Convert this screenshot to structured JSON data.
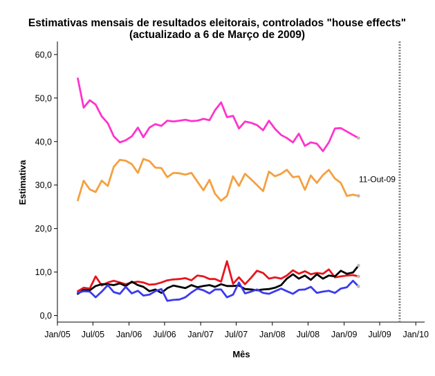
{
  "chart_data": {
    "type": "line",
    "title_line1": "Estimativas mensais de resultados eleitorais, controlados \"house effects\"",
    "title_line2": "(actualizado a 6 de Março de 2009)",
    "xlabel": "Mês",
    "ylabel": "Estimativa",
    "ylim": [
      -1.5,
      63
    ],
    "xlim": [
      "2005-01-01",
      "2010-02-15"
    ],
    "yticks": [
      0,
      10,
      20,
      30,
      40,
      50,
      60
    ],
    "ytick_labels": [
      "0,0",
      "10,0",
      "20,0",
      "30,0",
      "40,0",
      "50,0",
      "60,0"
    ],
    "xticks": [
      "2005-01-01",
      "2005-07-01",
      "2006-01-01",
      "2006-07-01",
      "2007-01-01",
      "2007-07-01",
      "2008-01-01",
      "2008-07-01",
      "2009-01-01",
      "2009-07-01",
      "2010-01-01"
    ],
    "xtick_labels": [
      "Jan/05",
      "Jul/05",
      "Jan/06",
      "Jul/06",
      "Jan/07",
      "Jul/07",
      "Jan/08",
      "Jul/08",
      "Jan/09",
      "Jul/09",
      "Jan/10"
    ],
    "grid": false,
    "legend": "none",
    "reference_line": {
      "x": "2009-10-11",
      "label": "11-Out-09",
      "style": "dotted",
      "color": "#808080"
    },
    "x": [
      "2005-04-15",
      "2005-05-15",
      "2005-06-15",
      "2005-07-15",
      "2005-08-15",
      "2005-09-15",
      "2005-10-15",
      "2005-11-15",
      "2005-12-15",
      "2006-01-15",
      "2006-02-15",
      "2006-03-15",
      "2006-04-15",
      "2006-05-15",
      "2006-06-15",
      "2006-07-15",
      "2006-08-15",
      "2006-09-15",
      "2006-10-15",
      "2006-11-15",
      "2006-12-15",
      "2007-01-15",
      "2007-02-15",
      "2007-03-15",
      "2007-04-15",
      "2007-05-15",
      "2007-06-15",
      "2007-07-15",
      "2007-08-15",
      "2007-09-15",
      "2007-10-15",
      "2007-11-15",
      "2007-12-15",
      "2008-01-15",
      "2008-02-15",
      "2008-03-15",
      "2008-04-15",
      "2008-05-15",
      "2008-06-15",
      "2008-07-15",
      "2008-08-15",
      "2008-09-15",
      "2008-10-15",
      "2008-11-15",
      "2008-12-15",
      "2009-01-15",
      "2009-02-15",
      "2009-03-15"
    ],
    "series": [
      {
        "color": "#ff33cc",
        "values": [
          54.5,
          47.8,
          49.5,
          48.5,
          45.8,
          44.2,
          41.2,
          39.8,
          40.3,
          41.2,
          43.2,
          41.0,
          43.2,
          44.0,
          43.6,
          44.8,
          44.6,
          44.8,
          45.0,
          44.7,
          44.8,
          45.2,
          44.9,
          47.2,
          49.0,
          45.6,
          45.9,
          43.0,
          44.6,
          44.3,
          43.8,
          42.6,
          44.8,
          42.9,
          41.5,
          40.8,
          39.8,
          41.8,
          39.0,
          39.8,
          39.5,
          37.8,
          39.8,
          43.0,
          43.1,
          42.3,
          41.5,
          40.8
        ]
      },
      {
        "color": "#f4a040",
        "values": [
          26.5,
          31.0,
          29.0,
          28.4,
          31.0,
          29.8,
          34.2,
          35.8,
          35.6,
          34.8,
          32.8,
          36.0,
          35.5,
          34.0,
          33.9,
          31.8,
          32.8,
          32.7,
          32.4,
          32.8,
          30.8,
          28.8,
          31.2,
          28.0,
          26.4,
          27.5,
          32.0,
          29.8,
          32.6,
          31.3,
          30.0,
          28.6,
          33.1,
          32.0,
          32.6,
          33.5,
          31.8,
          32.0,
          28.9,
          32.2,
          30.5,
          32.3,
          33.5,
          31.5,
          30.5,
          27.5,
          27.8,
          27.5
        ]
      },
      {
        "color": "#e8141c",
        "values": [
          5.6,
          6.4,
          6.2,
          9.0,
          6.9,
          7.6,
          8.0,
          7.6,
          7.2,
          7.6,
          7.8,
          7.6,
          7.1,
          7.2,
          7.6,
          8.1,
          8.3,
          8.4,
          8.6,
          8.1,
          9.2,
          9.0,
          8.4,
          8.4,
          7.8,
          12.5,
          7.3,
          8.8,
          7.2,
          8.7,
          10.3,
          9.8,
          8.5,
          8.8,
          8.5,
          9.2,
          10.4,
          9.6,
          10.2,
          9.5,
          9.8,
          9.6,
          10.6,
          8.8,
          9.0,
          9.2,
          9.3,
          9.0
        ]
      },
      {
        "color": "#000000",
        "values": [
          5.0,
          5.9,
          5.8,
          6.8,
          7.2,
          7.2,
          7.0,
          7.4,
          6.8,
          7.8,
          7.0,
          6.6,
          5.6,
          6.0,
          5.2,
          6.3,
          6.9,
          6.6,
          6.3,
          7.0,
          6.5,
          6.8,
          7.0,
          6.6,
          7.2,
          6.8,
          6.8,
          6.9,
          6.1,
          6.0,
          5.8,
          6.0,
          6.1,
          6.4,
          7.0,
          8.5,
          9.5,
          8.5,
          9.2,
          8.2,
          9.5,
          8.5,
          9.2,
          9.0,
          10.3,
          9.6,
          9.9,
          11.5
        ]
      },
      {
        "color": "#3a3aee",
        "values": [
          5.2,
          5.6,
          5.5,
          4.2,
          5.5,
          7.0,
          5.4,
          5.0,
          6.6,
          5.1,
          5.7,
          4.6,
          4.8,
          5.6,
          6.1,
          3.4,
          3.6,
          3.7,
          4.2,
          5.3,
          6.2,
          5.8,
          5.1,
          6.0,
          6.0,
          4.2,
          4.8,
          7.6,
          5.1,
          5.5,
          6.0,
          5.2,
          5.0,
          5.6,
          6.2,
          5.6,
          5.0,
          5.9,
          6.0,
          6.6,
          5.2,
          5.5,
          5.7,
          5.2,
          6.2,
          6.5,
          8.0,
          6.7
        ]
      }
    ]
  }
}
